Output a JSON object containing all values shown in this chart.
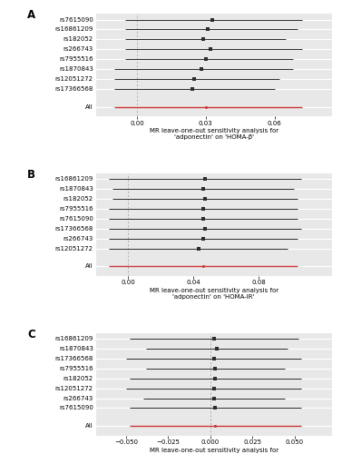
{
  "panel_A": {
    "label": "A",
    "snps": [
      "rs7615090",
      "rs16861209",
      "rs182052",
      "rs266743",
      "rs7955516",
      "rs1870843",
      "rs12051272",
      "rs17366568"
    ],
    "estimates": [
      0.033,
      0.031,
      0.029,
      0.032,
      0.03,
      0.028,
      0.025,
      0.024
    ],
    "ci_low": [
      -0.005,
      -0.005,
      -0.005,
      -0.005,
      -0.005,
      -0.01,
      -0.01,
      -0.01
    ],
    "ci_high": [
      0.072,
      0.07,
      0.065,
      0.072,
      0.068,
      0.068,
      0.062,
      0.06
    ],
    "all_estimate": 0.03,
    "all_ci_low": -0.01,
    "all_ci_high": 0.072,
    "xlim": [
      -0.018,
      0.085
    ],
    "xticks": [
      0.0,
      0.03,
      0.06
    ],
    "xlabel": "MR leave-one-out sensitivity analysis for\n'adponectin' on 'HOMA-β'",
    "vline": 0.0
  },
  "panel_B": {
    "label": "B",
    "snps": [
      "rs16861209",
      "rs1870843",
      "rs182052",
      "rs7955516",
      "rs7615090",
      "rs17366568",
      "rs266743",
      "rs12051272"
    ],
    "estimates": [
      0.047,
      0.046,
      0.047,
      0.046,
      0.046,
      0.047,
      0.046,
      0.043
    ],
    "ci_low": [
      -0.012,
      -0.01,
      -0.01,
      -0.012,
      -0.012,
      -0.012,
      -0.012,
      -0.012
    ],
    "ci_high": [
      0.106,
      0.102,
      0.104,
      0.104,
      0.104,
      0.106,
      0.104,
      0.098
    ],
    "all_estimate": 0.046,
    "all_ci_low": -0.012,
    "all_ci_high": 0.104,
    "xlim": [
      -0.02,
      0.125
    ],
    "xticks": [
      0.0,
      0.04,
      0.08
    ],
    "xlabel": "MR leave-one-out sensitivity analysis for\n'adponectin' on 'HOMA-IR'",
    "vline": 0.0
  },
  "panel_C": {
    "label": "C",
    "snps": [
      "rs16861209",
      "rs1870843",
      "rs17366568",
      "rs7955516",
      "rs182052",
      "rs12051272",
      "rs266743",
      "rs7615090"
    ],
    "estimates": [
      0.002,
      0.004,
      0.002,
      0.003,
      0.003,
      0.002,
      0.002,
      0.003
    ],
    "ci_low": [
      -0.048,
      -0.038,
      -0.05,
      -0.038,
      -0.048,
      -0.05,
      -0.04,
      -0.048
    ],
    "ci_high": [
      0.052,
      0.046,
      0.054,
      0.044,
      0.054,
      0.054,
      0.044,
      0.054
    ],
    "all_estimate": 0.003,
    "all_ci_low": -0.048,
    "all_ci_high": 0.054,
    "xlim": [
      -0.068,
      0.072
    ],
    "xticks": [
      -0.05,
      -0.025,
      0.0,
      0.025,
      0.05
    ],
    "xlabel": "MR leave-one-out sensitivity analysis for\n'adponectin' on 'FG'",
    "vline": 0.0
  },
  "black_color": "#2b2b2b",
  "red_color": "#cc3333",
  "bg_color": "#e8e8e8",
  "grid_color": "#ffffff",
  "tick_fontsize": 5.0,
  "label_fontsize": 5.0,
  "panel_label_fontsize": 8.5
}
